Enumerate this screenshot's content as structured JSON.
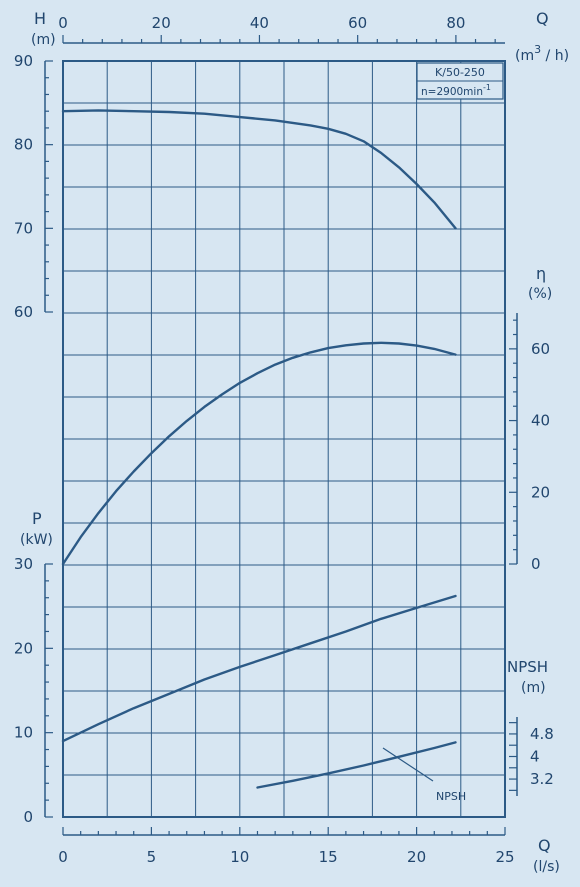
{
  "chart_data": {
    "type": "line",
    "model_label": "K/50-250",
    "speed_label": "n=2900min",
    "speed_exp": "-1",
    "colors": {
      "line": "#2c5a86",
      "grid": "#2c5a86",
      "text": "#21466e",
      "bg": "#d7e6f2"
    },
    "axes": {
      "flow_ls": {
        "label": "Q",
        "unit": "(l/s)",
        "range": [
          0,
          25
        ],
        "ticks": [
          "0",
          "5",
          "10",
          "15",
          "20",
          "25"
        ]
      },
      "flow_m3h": {
        "label": "Q",
        "unit_pre": "(m",
        "unit_exp": "3",
        "unit_post": " / h)",
        "range": [
          0,
          90
        ],
        "ticks": [
          "0",
          "20",
          "40",
          "60",
          "80"
        ]
      },
      "head": {
        "label": "H",
        "unit": "(m)",
        "range": [
          60,
          90
        ],
        "ticks": [
          "90",
          "80",
          "70",
          "60"
        ]
      },
      "efficiency": {
        "label": "η",
        "unit": "(%)",
        "range": [
          0,
          70
        ],
        "ticks": [
          "60",
          "40",
          "20",
          "0"
        ]
      },
      "power": {
        "label": "P",
        "unit": "(kW)",
        "range": [
          0,
          30
        ],
        "ticks": [
          "30",
          "20",
          "10",
          "0"
        ]
      },
      "npsh": {
        "label": "NPSH",
        "unit": "(m)",
        "range": [
          2.6,
          5.4
        ],
        "ticks": [
          "4.8",
          "4",
          "3.2"
        ]
      }
    },
    "series": [
      {
        "quantity": "head",
        "x": [
          0,
          2,
          4,
          6,
          8,
          10,
          12,
          14,
          15,
          16,
          17,
          18,
          19,
          20,
          21,
          22.2
        ],
        "y": [
          84.0,
          84.1,
          84.0,
          83.9,
          83.7,
          83.3,
          82.9,
          82.3,
          81.9,
          81.3,
          80.4,
          79.0,
          77.3,
          75.3,
          73.1,
          70.0
        ]
      },
      {
        "quantity": "efficiency",
        "x": [
          0,
          1,
          2,
          3,
          4,
          5,
          6,
          7,
          8,
          9,
          10,
          11,
          12,
          13,
          14,
          15,
          16,
          17,
          18,
          19,
          20,
          21,
          22.2
        ],
        "y": [
          0,
          7.5,
          14.2,
          20.3,
          25.8,
          30.9,
          35.6,
          39.9,
          43.8,
          47.3,
          50.5,
          53.2,
          55.6,
          57.5,
          59.0,
          60.2,
          61.0,
          61.5,
          61.7,
          61.5,
          60.9,
          60.0,
          58.4
        ]
      },
      {
        "quantity": "power",
        "x": [
          0,
          2,
          4,
          6,
          8,
          10,
          12,
          14,
          16,
          18,
          20,
          22.2
        ],
        "y": [
          9.0,
          11.0,
          12.9,
          14.6,
          16.3,
          17.8,
          19.2,
          20.6,
          22.0,
          23.5,
          24.8,
          26.2
        ]
      },
      {
        "quantity": "npsh",
        "name": "NPSH",
        "x": [
          11,
          13,
          15,
          17,
          19,
          21,
          22.2
        ],
        "y": [
          2.9,
          3.14,
          3.4,
          3.68,
          3.99,
          4.3,
          4.5
        ]
      }
    ]
  }
}
